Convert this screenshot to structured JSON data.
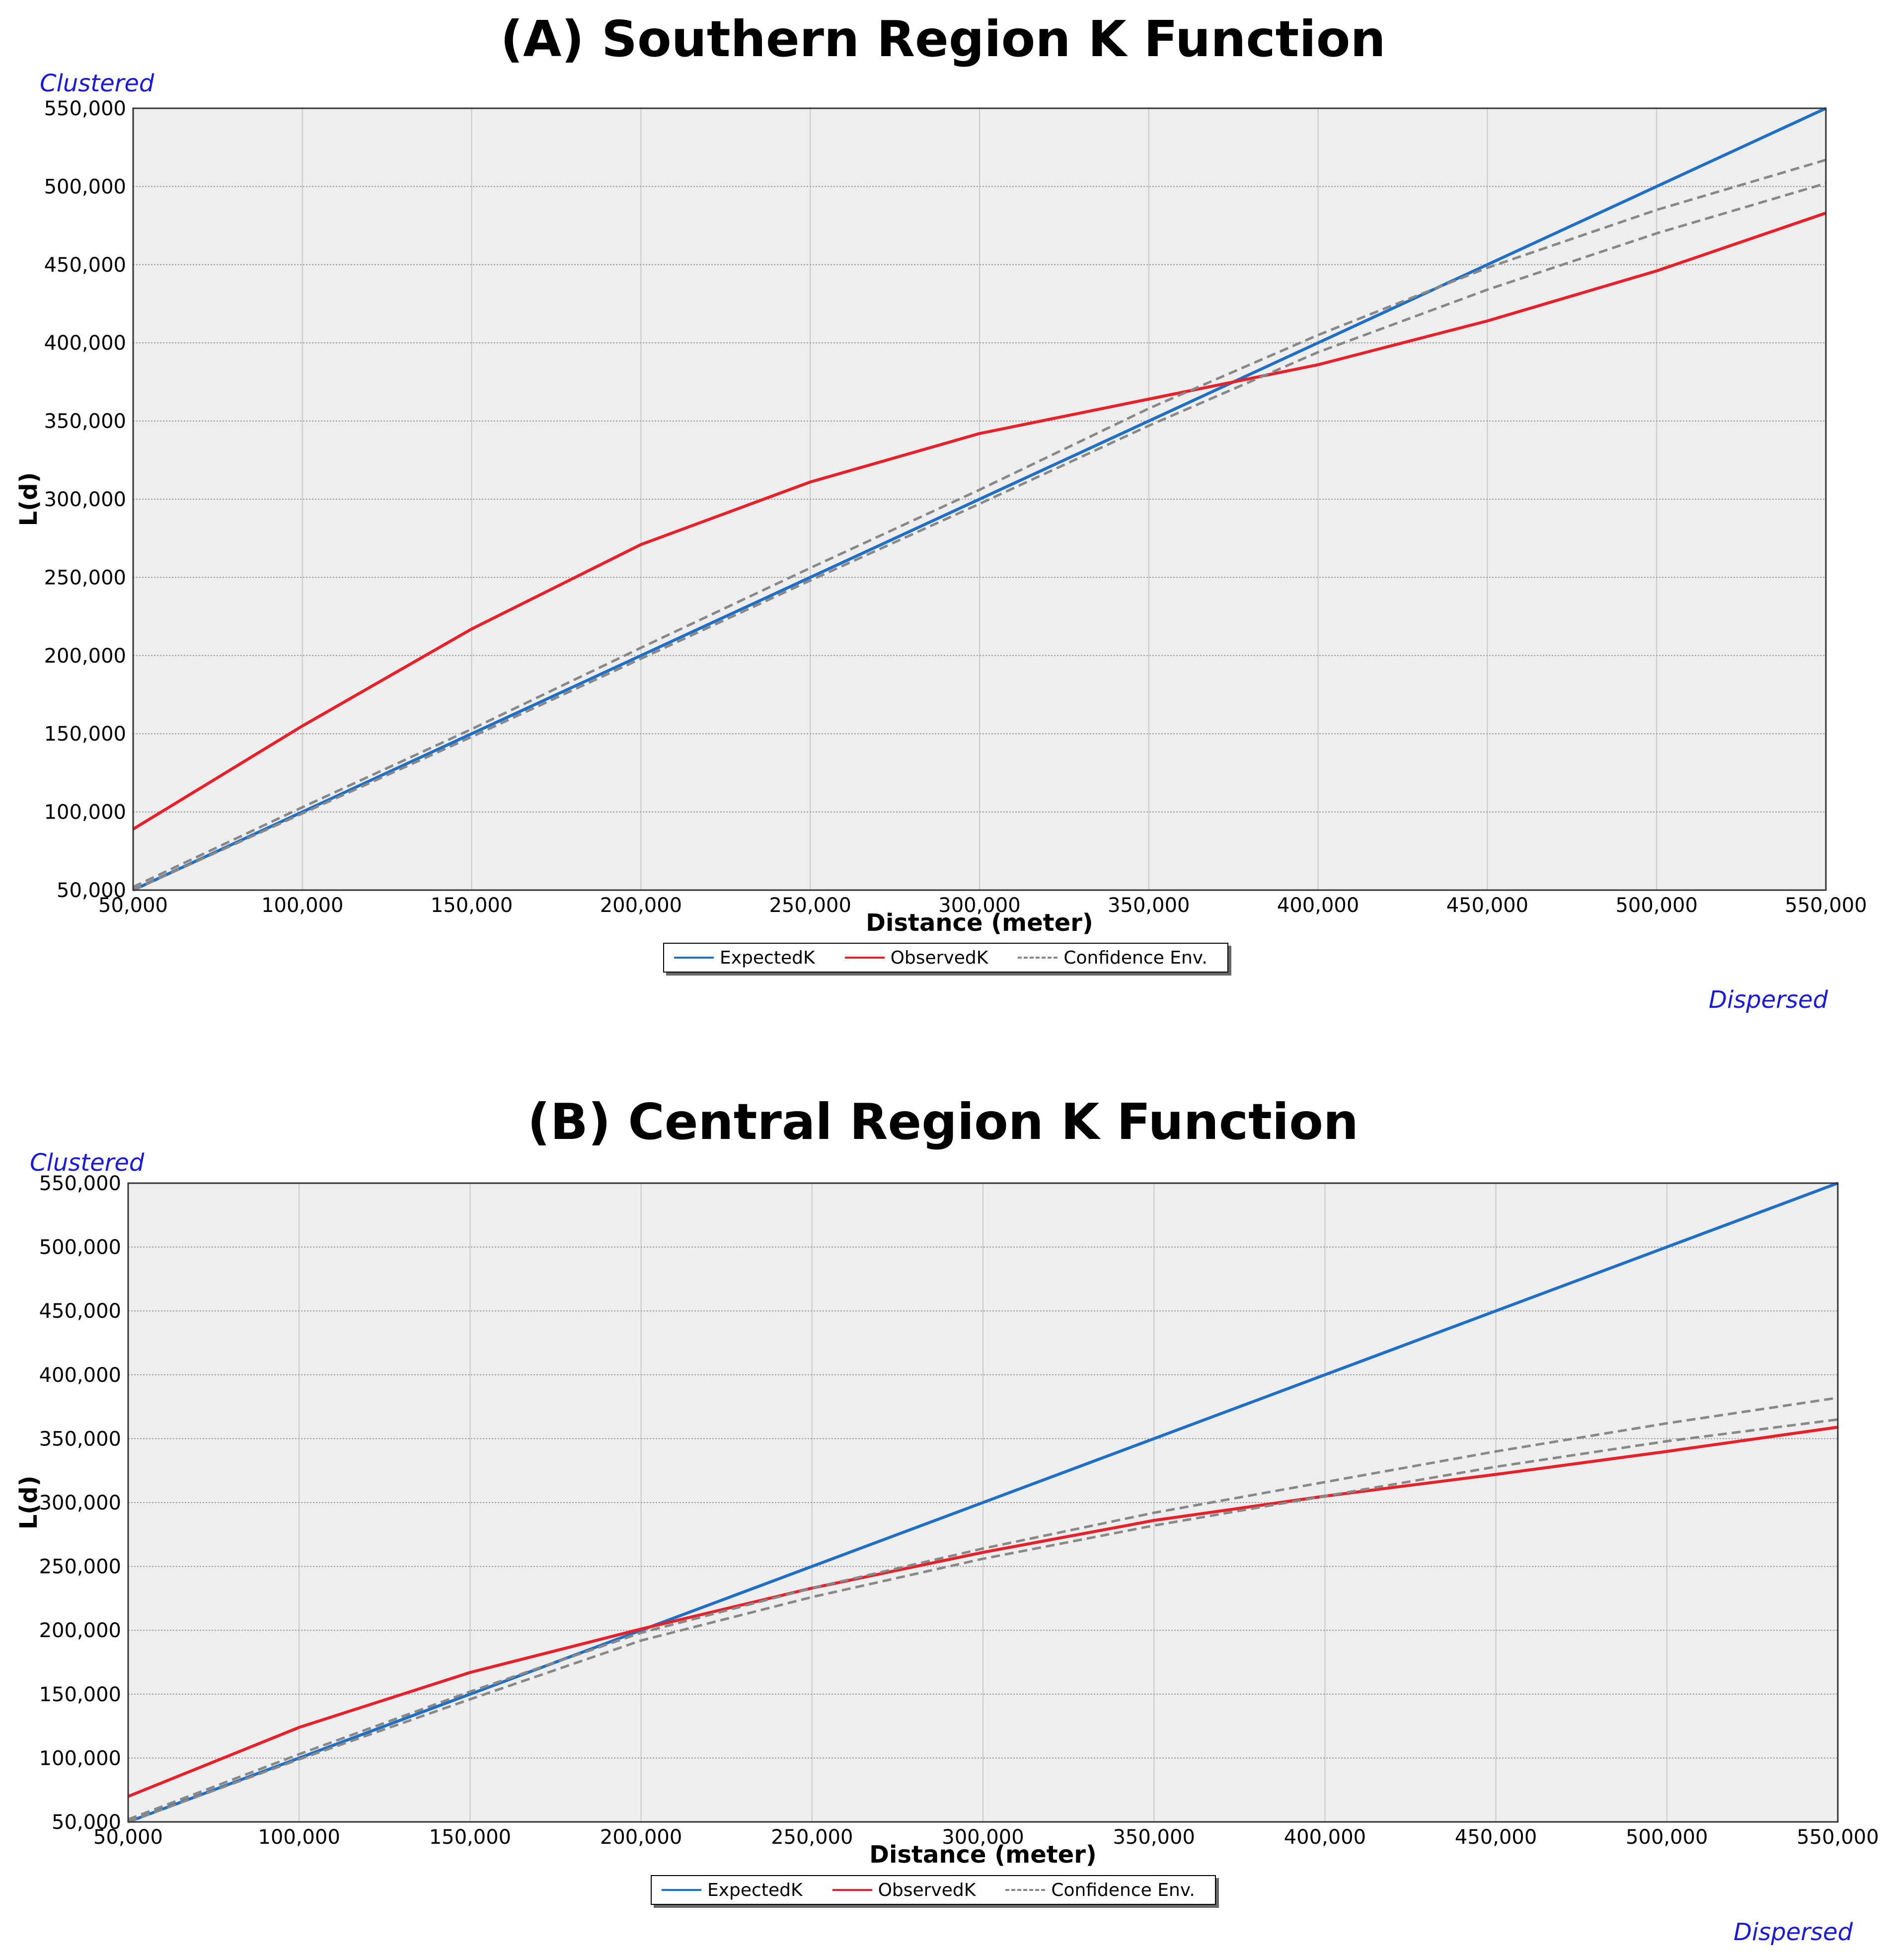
{
  "chart_data": [
    {
      "type": "line",
      "title": "(A) Southern Region K Function",
      "xlabel": "Distance (meter)",
      "ylabel": "L(d)",
      "corner_top": "Clustered",
      "corner_bottom": "Dispersed",
      "xlim": [
        50000,
        550000
      ],
      "ylim": [
        50000,
        550000
      ],
      "xticks": [
        "50,000",
        "100,000",
        "150,000",
        "200,000",
        "250,000",
        "300,000",
        "350,000",
        "400,000",
        "450,000",
        "500,000",
        "550,000"
      ],
      "yticks": [
        "50,000",
        "100,000",
        "150,000",
        "200,000",
        "250,000",
        "300,000",
        "350,000",
        "400,000",
        "450,000",
        "500,000",
        "550,000"
      ],
      "grid": true,
      "legend_position": "bottom-center",
      "x": [
        50000,
        100000,
        150000,
        200000,
        250000,
        300000,
        350000,
        400000,
        450000,
        500000,
        550000
      ],
      "series": [
        {
          "name": "ExpectedK",
          "color": "#1f6fc4",
          "style": "solid",
          "values": [
            50000,
            100000,
            150000,
            200000,
            250000,
            300000,
            350000,
            400000,
            450000,
            500000,
            550000
          ]
        },
        {
          "name": "ObservedK",
          "color": "#e8202a",
          "style": "solid",
          "values": [
            89000,
            155000,
            217000,
            271000,
            311000,
            342000,
            364000,
            386000,
            414000,
            446000,
            483000
          ]
        },
        {
          "name": "Confidence Env.",
          "color": "#888888",
          "style": "dashed",
          "values": [
            52000,
            103000,
            153000,
            205000,
            256000,
            306000,
            358000,
            405000,
            448000,
            485000,
            517000
          ]
        },
        {
          "name": "Confidence Env.",
          "color": "#888888",
          "style": "dashed",
          "legend": false,
          "values": [
            50000,
            99000,
            148000,
            198000,
            248000,
            297000,
            347000,
            394000,
            434000,
            470000,
            502000
          ]
        }
      ]
    },
    {
      "type": "line",
      "title": "(B) Central Region K Function",
      "xlabel": "Distance (meter)",
      "ylabel": "L(d)",
      "corner_top": "Clustered",
      "corner_bottom": "Dispersed",
      "xlim": [
        50000,
        550000
      ],
      "ylim": [
        50000,
        550000
      ],
      "xticks": [
        "50,000",
        "100,000",
        "150,000",
        "200,000",
        "250,000",
        "300,000",
        "350,000",
        "400,000",
        "450,000",
        "500,000",
        "550,000"
      ],
      "yticks": [
        "50,000",
        "100,000",
        "150,000",
        "200,000",
        "250,000",
        "300,000",
        "350,000",
        "400,000",
        "450,000",
        "500,000",
        "550,000"
      ],
      "grid": true,
      "legend_position": "bottom-center",
      "x": [
        50000,
        100000,
        150000,
        200000,
        250000,
        300000,
        350000,
        400000,
        450000,
        500000,
        550000
      ],
      "series": [
        {
          "name": "ExpectedK",
          "color": "#1f6fc4",
          "style": "solid",
          "values": [
            50000,
            100000,
            150000,
            200000,
            250000,
            300000,
            350000,
            400000,
            450000,
            500000,
            550000
          ]
        },
        {
          "name": "ObservedK",
          "color": "#e8202a",
          "style": "solid",
          "values": [
            70000,
            124000,
            167000,
            201000,
            233000,
            261000,
            286000,
            305000,
            322000,
            340000,
            359000
          ]
        },
        {
          "name": "Confidence Env.",
          "color": "#888888",
          "style": "dashed",
          "values": [
            52000,
            103000,
            152000,
            198000,
            233000,
            264000,
            292000,
            316000,
            340000,
            362000,
            382000
          ]
        },
        {
          "name": "Confidence Env.",
          "color": "#888888",
          "style": "dashed",
          "legend": false,
          "values": [
            50000,
            99000,
            146000,
            192000,
            226000,
            256000,
            282000,
            305000,
            328000,
            348000,
            365000
          ]
        }
      ]
    }
  ]
}
